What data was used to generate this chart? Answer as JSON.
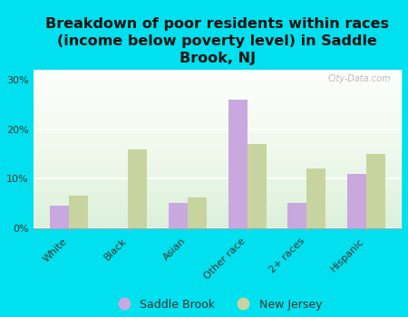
{
  "title": "Breakdown of poor residents within races\n(income below poverty level) in Saddle\nBrook, NJ",
  "categories": [
    "White",
    "Black",
    "Asian",
    "Other race",
    "2+ races",
    "Hispanic"
  ],
  "saddle_brook": [
    4.5,
    0.0,
    5.2,
    26.0,
    5.2,
    11.0
  ],
  "new_jersey": [
    6.5,
    16.0,
    6.2,
    17.0,
    12.0,
    15.0
  ],
  "saddle_brook_color": "#c9a8e0",
  "new_jersey_color": "#c8d4a0",
  "background_outer": "#00e0ee",
  "yticks": [
    0,
    10,
    20,
    30
  ],
  "ylim": [
    0,
    32
  ],
  "legend_saddle_brook": "Saddle Brook",
  "legend_new_jersey": "New Jersey",
  "bar_width": 0.32,
  "title_fontsize": 11.5,
  "tick_fontsize": 8,
  "legend_fontsize": 9,
  "watermark": "City-Data.com"
}
